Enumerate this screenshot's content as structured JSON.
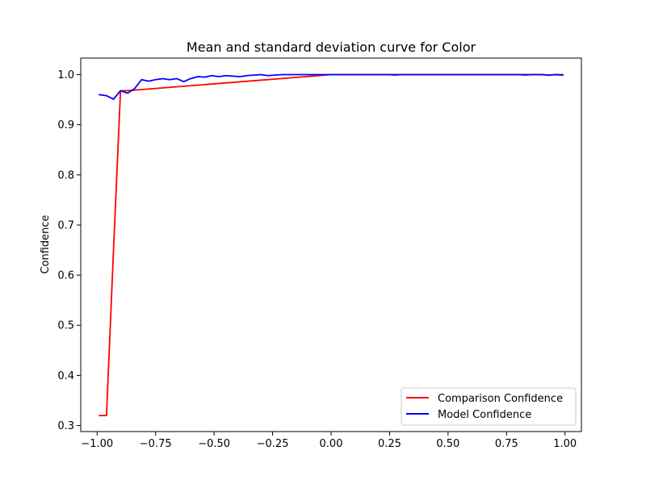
{
  "chart_data": {
    "type": "line",
    "title": "Mean and standard deviation curve for Color",
    "xlabel": "",
    "ylabel": "Confidence",
    "xlim": [
      -1.07,
      1.07
    ],
    "ylim": [
      0.288,
      1.033
    ],
    "xticks": [
      -1.0,
      -0.75,
      -0.5,
      -0.25,
      0.0,
      0.25,
      0.5,
      0.75,
      1.0
    ],
    "xtick_labels": [
      "−1.00",
      "−0.75",
      "−0.50",
      "−0.25",
      "0.00",
      "0.25",
      "0.50",
      "0.75",
      "1.00"
    ],
    "yticks": [
      0.3,
      0.4,
      0.5,
      0.6,
      0.7,
      0.8,
      0.9,
      1.0
    ],
    "ytick_labels": [
      "0.3",
      "0.4",
      "0.5",
      "0.6",
      "0.7",
      "0.8",
      "0.9",
      "1.0"
    ],
    "grid": false,
    "legend": {
      "position": "lower-right"
    },
    "series": [
      {
        "name": "Comparison Confidence",
        "color": "#ff0000",
        "x": [
          -0.99,
          -0.96,
          -0.93,
          -0.9,
          -0.87,
          0.0,
          0.25,
          0.27,
          0.3,
          0.8,
          0.83,
          0.86,
          0.9,
          0.93,
          0.96,
          0.99
        ],
        "y": [
          0.32,
          0.32,
          0.65,
          0.968,
          0.968,
          1.0,
          1.0,
          0.999,
          1.0,
          1.0,
          0.999,
          1.0,
          1.0,
          0.999,
          1.0,
          1.0
        ]
      },
      {
        "name": "Model Confidence",
        "color": "#0000ff",
        "x": [
          -0.99,
          -0.96,
          -0.93,
          -0.9,
          -0.87,
          -0.84,
          -0.81,
          -0.78,
          -0.75,
          -0.72,
          -0.69,
          -0.66,
          -0.63,
          -0.6,
          -0.57,
          -0.54,
          -0.51,
          -0.48,
          -0.45,
          -0.42,
          -0.39,
          -0.36,
          -0.33,
          -0.3,
          -0.27,
          -0.24,
          -0.21,
          -0.18,
          -0.15,
          -0.12,
          -0.09,
          -0.06,
          -0.03,
          0.0,
          0.1,
          0.2,
          0.25,
          0.28,
          0.3,
          0.4,
          0.5,
          0.6,
          0.7,
          0.8,
          0.83,
          0.86,
          0.9,
          0.93,
          0.96,
          0.99
        ],
        "y": [
          0.96,
          0.958,
          0.951,
          0.968,
          0.963,
          0.972,
          0.99,
          0.987,
          0.99,
          0.992,
          0.99,
          0.992,
          0.986,
          0.992,
          0.996,
          0.995,
          0.998,
          0.996,
          0.998,
          0.997,
          0.996,
          0.998,
          0.999,
          1.0,
          0.998,
          0.999,
          1.0,
          1.0,
          1.0,
          1.0,
          1.0,
          1.0,
          1.0,
          1.0,
          1.0,
          1.0,
          1.0,
          1.0,
          1.0,
          1.0,
          1.0,
          1.0,
          1.0,
          1.0,
          1.0,
          1.0,
          1.0,
          0.999,
          1.0,
          0.999
        ]
      }
    ]
  }
}
